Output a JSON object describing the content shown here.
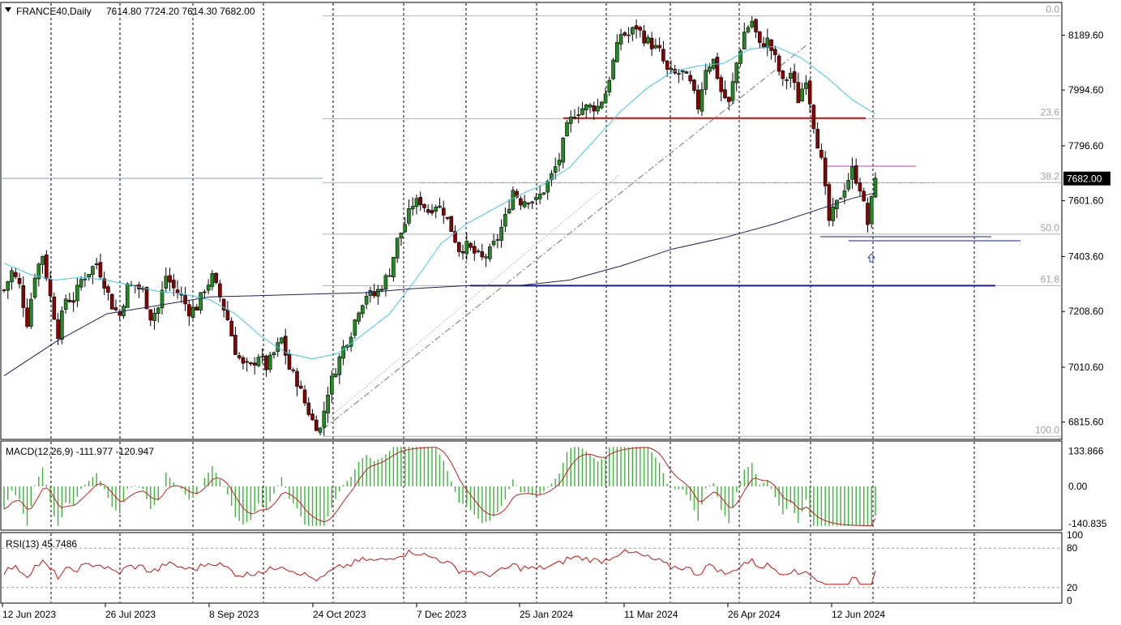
{
  "window": {
    "symbol_label": "FRANCE40,Daily",
    "ohlc_label": "7614.80 7724.20 7614.30 7682.00",
    "current_price_label": "7682.00"
  },
  "colors": {
    "background": "#ffffff",
    "bull": "#228b22",
    "bear": "#8b0000",
    "ema_fast": "#40c8e8",
    "ema_slow": "#202060",
    "resistance": "#d01010",
    "support": "#1a1aa0",
    "fib_lines": "#b0b0b0",
    "macd_hist": "#3cb43c",
    "macd_signal": "#c81e1e",
    "rsi_line": "#d01010"
  },
  "chart_data": [
    {
      "type": "candlestick",
      "name": "price",
      "symbol": "FRANCE40",
      "timeframe": "Daily",
      "ohlc_last": {
        "open": 7614.8,
        "high": 7724.2,
        "low": 7614.3,
        "close": 7682.0
      },
      "x_ticks": [
        "12 Jun 2023",
        "26 Jul 2023",
        "8 Sep 2023",
        "24 Oct 2023",
        "7 Dec 2023",
        "25 Jan 2024",
        "11 Mar 2024",
        "26 Apr 2024",
        "12 Jun 2024"
      ],
      "y_ticks": [
        6815.6,
        7010.6,
        7208.6,
        7403.6,
        7601.6,
        7796.6,
        7994.6,
        8189.6
      ],
      "ylim": [
        6760,
        8300
      ],
      "grid": "vertical dashed",
      "fib_levels": [
        {
          "label": "0.0",
          "price": 8258
        },
        {
          "label": "23.6",
          "price": 7893
        },
        {
          "label": "38.2",
          "price": 7666
        },
        {
          "label": "50.0",
          "price": 7483
        },
        {
          "label": "61.8",
          "price": 7300
        },
        {
          "label": "100.0",
          "price": 6765
        }
      ],
      "series_points": {
        "close": [
          [
            0,
            7284
          ],
          [
            6,
            7350
          ],
          [
            12,
            7300
          ],
          [
            18,
            7170
          ],
          [
            24,
            7340
          ],
          [
            30,
            7410
          ],
          [
            36,
            7260
          ],
          [
            42,
            7130
          ],
          [
            48,
            7255
          ],
          [
            54,
            7250
          ],
          [
            60,
            7320
          ],
          [
            66,
            7350
          ],
          [
            72,
            7380
          ],
          [
            78,
            7310
          ],
          [
            84,
            7230
          ],
          [
            90,
            7195
          ],
          [
            96,
            7295
          ],
          [
            102,
            7300
          ],
          [
            108,
            7280
          ],
          [
            114,
            7190
          ],
          [
            120,
            7220
          ],
          [
            126,
            7335
          ],
          [
            132,
            7290
          ],
          [
            138,
            7260
          ],
          [
            144,
            7210
          ],
          [
            150,
            7225
          ],
          [
            156,
            7290
          ],
          [
            162,
            7330
          ],
          [
            168,
            7260
          ],
          [
            174,
            7180
          ],
          [
            180,
            7070
          ],
          [
            186,
            7015
          ],
          [
            192,
            7010
          ],
          [
            198,
            7055
          ],
          [
            204,
            7010
          ],
          [
            210,
            7060
          ],
          [
            216,
            7110
          ],
          [
            222,
            7005
          ],
          [
            228,
            6960
          ],
          [
            234,
            6885
          ],
          [
            240,
            6820
          ],
          [
            246,
            6790
          ],
          [
            252,
            6925
          ],
          [
            258,
            7005
          ],
          [
            264,
            7080
          ],
          [
            270,
            7135
          ],
          [
            276,
            7220
          ],
          [
            282,
            7270
          ],
          [
            288,
            7265
          ],
          [
            294,
            7300
          ],
          [
            300,
            7350
          ],
          [
            306,
            7460
          ],
          [
            312,
            7520
          ],
          [
            318,
            7590
          ],
          [
            324,
            7600
          ],
          [
            330,
            7565
          ],
          [
            336,
            7590
          ],
          [
            342,
            7565
          ],
          [
            348,
            7500
          ],
          [
            354,
            7430
          ],
          [
            360,
            7440
          ],
          [
            366,
            7415
          ],
          [
            372,
            7395
          ],
          [
            378,
            7420
          ],
          [
            384,
            7470
          ],
          [
            390,
            7540
          ],
          [
            396,
            7640
          ],
          [
            402,
            7600
          ],
          [
            408,
            7610
          ],
          [
            414,
            7600
          ],
          [
            420,
            7640
          ],
          [
            426,
            7690
          ],
          [
            432,
            7750
          ],
          [
            438,
            7860
          ],
          [
            444,
            7915
          ],
          [
            450,
            7930
          ],
          [
            456,
            7935
          ],
          [
            462,
            7935
          ],
          [
            468,
            7985
          ],
          [
            474,
            8095
          ],
          [
            480,
            8195
          ],
          [
            486,
            8190
          ],
          [
            492,
            8220
          ],
          [
            498,
            8180
          ],
          [
            504,
            8155
          ],
          [
            510,
            8130
          ],
          [
            516,
            8060
          ],
          [
            522,
            8050
          ],
          [
            528,
            8055
          ],
          [
            534,
            8015
          ],
          [
            540,
            7935
          ],
          [
            546,
            8075
          ],
          [
            552,
            8100
          ],
          [
            558,
            7990
          ],
          [
            564,
            7945
          ],
          [
            570,
            8090
          ],
          [
            576,
            8200
          ],
          [
            582,
            8240
          ],
          [
            588,
            8150
          ],
          [
            594,
            8170
          ],
          [
            600,
            8105
          ],
          [
            606,
            8020
          ],
          [
            612,
            8055
          ],
          [
            618,
            7960
          ],
          [
            624,
            8040
          ],
          [
            630,
            7875
          ],
          [
            636,
            7740
          ],
          [
            642,
            7530
          ],
          [
            648,
            7590
          ],
          [
            654,
            7650
          ],
          [
            660,
            7710
          ],
          [
            666,
            7650
          ],
          [
            672,
            7520
          ],
          [
            678,
            7682
          ]
        ],
        "ema_fast": [
          [
            0,
            7380
          ],
          [
            20,
            7340
          ],
          [
            40,
            7320
          ],
          [
            60,
            7330
          ],
          [
            80,
            7320
          ],
          [
            100,
            7300
          ],
          [
            120,
            7280
          ],
          [
            140,
            7270
          ],
          [
            160,
            7250
          ],
          [
            180,
            7200
          ],
          [
            200,
            7120
          ],
          [
            220,
            7060
          ],
          [
            240,
            7040
          ],
          [
            260,
            7060
          ],
          [
            280,
            7130
          ],
          [
            300,
            7200
          ],
          [
            320,
            7320
          ],
          [
            340,
            7450
          ],
          [
            360,
            7520
          ],
          [
            380,
            7570
          ],
          [
            400,
            7620
          ],
          [
            420,
            7660
          ],
          [
            440,
            7720
          ],
          [
            460,
            7820
          ],
          [
            480,
            7920
          ],
          [
            500,
            8000
          ],
          [
            520,
            8060
          ],
          [
            540,
            8080
          ],
          [
            560,
            8090
          ],
          [
            580,
            8140
          ],
          [
            600,
            8150
          ],
          [
            620,
            8110
          ],
          [
            640,
            8040
          ],
          [
            660,
            7960
          ],
          [
            678,
            7910
          ]
        ],
        "ema_slow": [
          [
            0,
            6980
          ],
          [
            40,
            7100
          ],
          [
            80,
            7200
          ],
          [
            120,
            7230
          ],
          [
            160,
            7260
          ],
          [
            200,
            7265
          ],
          [
            240,
            7270
          ],
          [
            280,
            7275
          ],
          [
            320,
            7290
          ],
          [
            360,
            7300
          ],
          [
            400,
            7300
          ],
          [
            440,
            7320
          ],
          [
            480,
            7370
          ],
          [
            520,
            7430
          ],
          [
            560,
            7470
          ],
          [
            600,
            7520
          ],
          [
            640,
            7580
          ],
          [
            660,
            7610
          ],
          [
            678,
            7630
          ]
        ]
      },
      "annotations": {
        "resistance_price": 7895,
        "support_price": 7300,
        "recent_support_price": 7460,
        "upper_range_price": 7707,
        "dash_dot_price": 7665
      }
    },
    {
      "type": "bar",
      "name": "macd",
      "label": "MACD(12,26,9) -111.977 -120.947",
      "macd_value": -111.977,
      "signal_value": -120.947,
      "y_ticks": [
        133.866,
        0.0,
        -140.835
      ],
      "ylim": [
        -160,
        160
      ]
    },
    {
      "type": "line",
      "name": "rsi",
      "label": "RSI(13) 45.7486",
      "rsi_value": 45.7486,
      "y_ticks": [
        100,
        80,
        20,
        0
      ],
      "ylim": [
        0,
        100
      ]
    }
  ]
}
